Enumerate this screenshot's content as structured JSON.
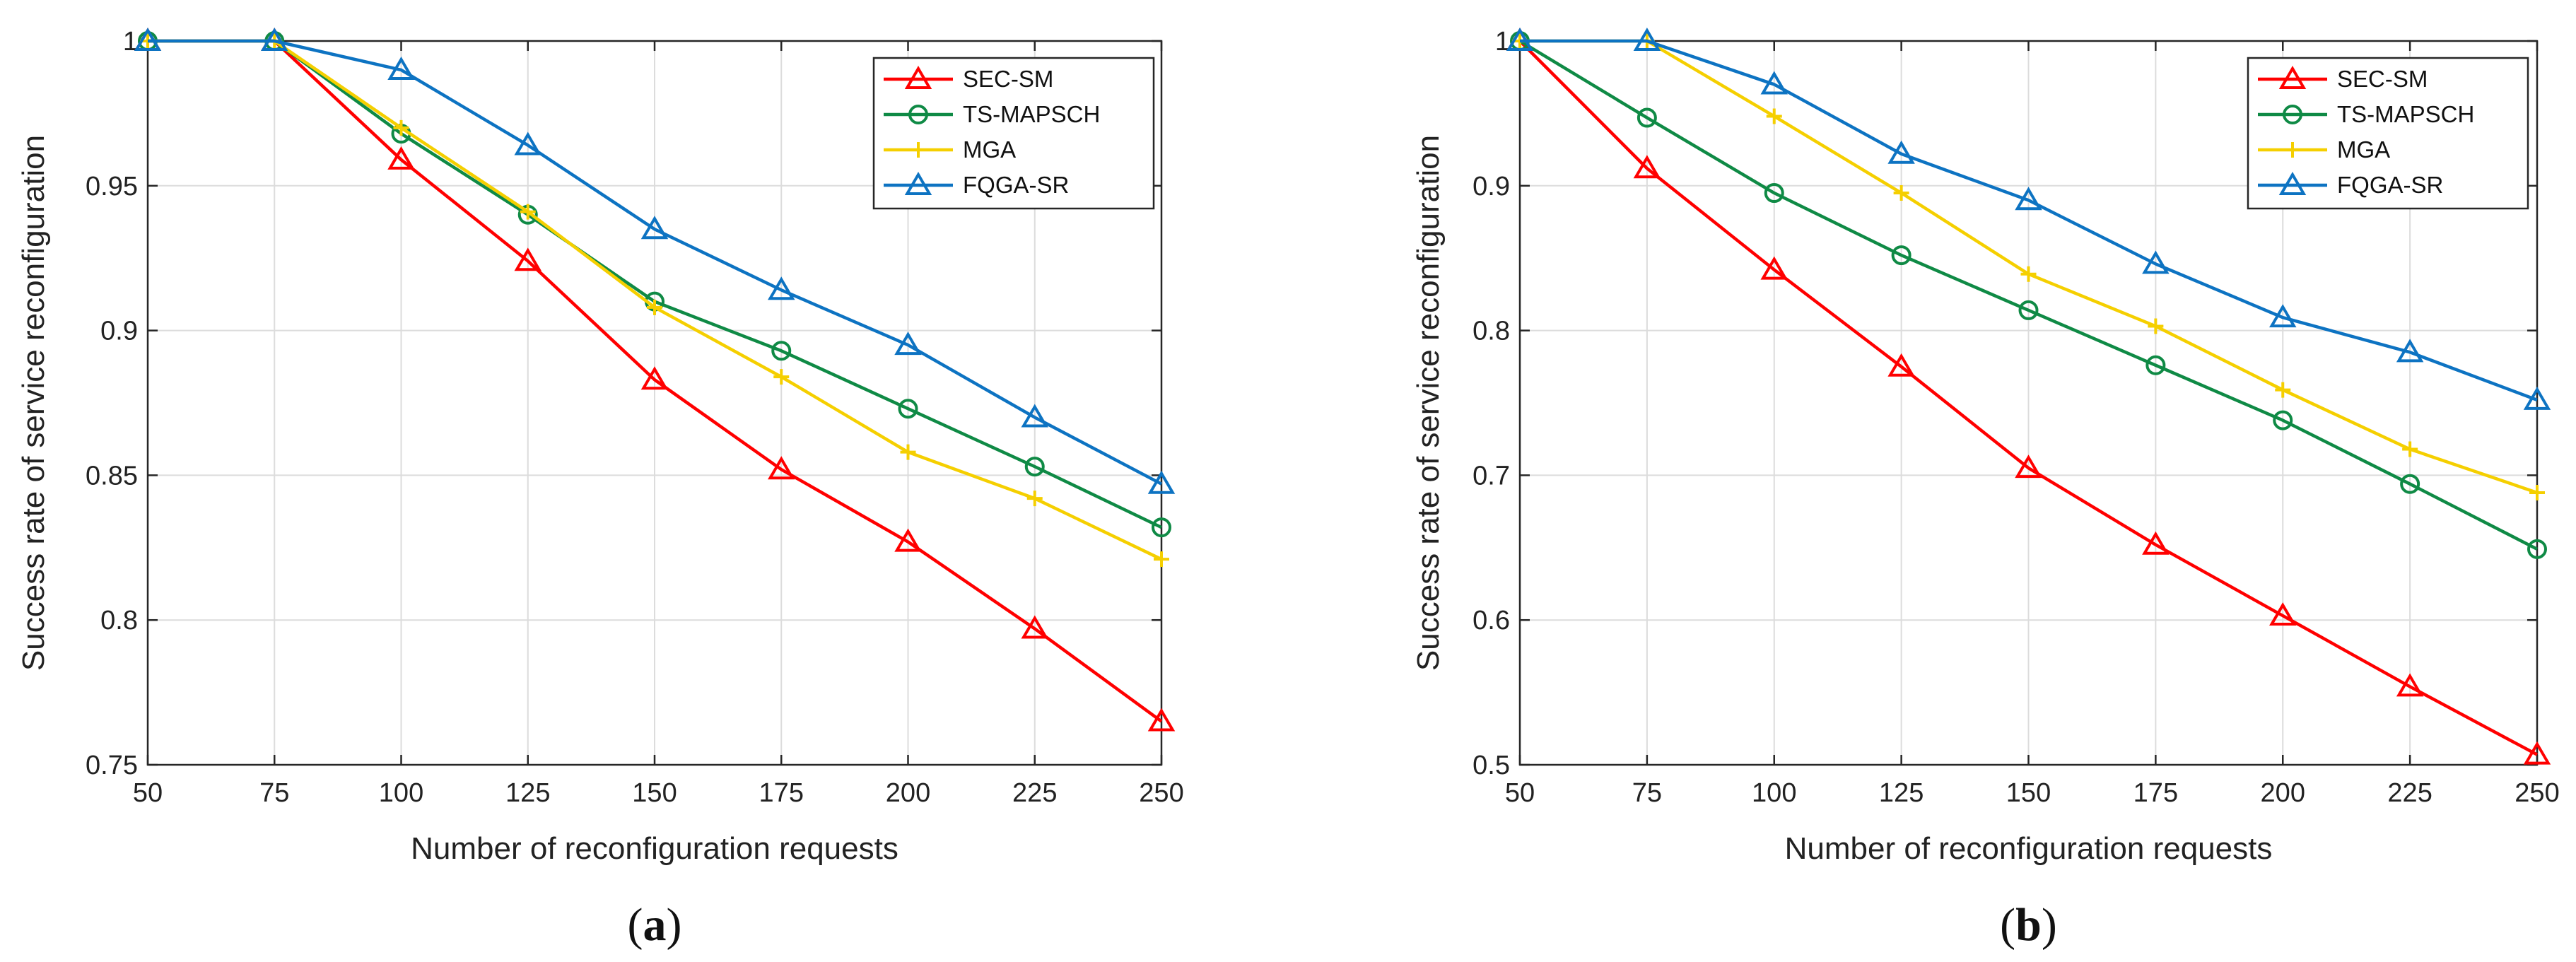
{
  "colors": {
    "SEC-SM": "#ff0000",
    "TS-MAPSCH": "#0f8a45",
    "MGA": "#f5cf00",
    "FQGA-SR": "#0d73c2"
  },
  "markers": {
    "SEC-SM": "triangle",
    "TS-MAPSCH": "circle",
    "MGA": "plus",
    "FQGA-SR": "triangle"
  },
  "chart_data": [
    {
      "type": "line",
      "caption": "(a)",
      "caption_parts": [
        "(",
        "a",
        ")"
      ],
      "xlabel": "Number of reconfiguration requests",
      "ylabel": "Success rate of service reconfiguration",
      "x": [
        50,
        75,
        100,
        125,
        150,
        175,
        200,
        225,
        250
      ],
      "xlim": [
        50,
        250
      ],
      "ylim": [
        0.75,
        1
      ],
      "xticks": [
        "50",
        "75",
        "100",
        "125",
        "150",
        "175",
        "200",
        "225",
        "250"
      ],
      "yticks": [
        "0.75",
        "0.8",
        "0.85",
        "0.9",
        "0.95",
        "1"
      ],
      "ytick_values": [
        0.75,
        0.8,
        0.85,
        0.9,
        0.95,
        1
      ],
      "grid": true,
      "legend_position": "top-right",
      "series": [
        {
          "name": "SEC-SM",
          "values": [
            1,
            1,
            0.959,
            0.924,
            0.883,
            0.852,
            0.827,
            0.797,
            0.765
          ]
        },
        {
          "name": "TS-MAPSCH",
          "values": [
            1,
            1,
            0.968,
            0.94,
            0.91,
            0.893,
            0.873,
            0.853,
            0.832
          ]
        },
        {
          "name": "MGA",
          "values": [
            1,
            1,
            0.97,
            0.941,
            0.908,
            0.884,
            0.858,
            0.842,
            0.821
          ]
        },
        {
          "name": "FQGA-SR",
          "values": [
            1,
            1,
            0.99,
            0.964,
            0.935,
            0.914,
            0.895,
            0.87,
            0.847
          ]
        }
      ]
    },
    {
      "type": "line",
      "caption": "(b)",
      "caption_parts": [
        "(",
        "b",
        ")"
      ],
      "xlabel": "Number of reconfiguration requests",
      "ylabel": "Success rate of service reconfiguration",
      "x": [
        50,
        75,
        100,
        125,
        150,
        175,
        200,
        225,
        250
      ],
      "xlim": [
        50,
        250
      ],
      "ylim": [
        0.5,
        1
      ],
      "xticks": [
        "50",
        "75",
        "100",
        "125",
        "150",
        "175",
        "200",
        "225",
        "250"
      ],
      "yticks": [
        "0.5",
        "0.6",
        "0.7",
        "0.8",
        "0.9",
        "1"
      ],
      "ytick_values": [
        0.5,
        0.6,
        0.7,
        0.8,
        0.9,
        1
      ],
      "grid": true,
      "legend_position": "top-right",
      "series": [
        {
          "name": "SEC-SM",
          "values": [
            1,
            0.912,
            0.842,
            0.775,
            0.705,
            0.652,
            0.603,
            0.554,
            0.507
          ]
        },
        {
          "name": "TS-MAPSCH",
          "values": [
            1,
            0.947,
            0.895,
            0.852,
            0.814,
            0.776,
            0.738,
            0.694,
            0.649
          ]
        },
        {
          "name": "MGA",
          "values": [
            1,
            1,
            0.948,
            0.895,
            0.839,
            0.803,
            0.759,
            0.718,
            0.688
          ]
        },
        {
          "name": "FQGA-SR",
          "values": [
            1,
            1,
            0.97,
            0.922,
            0.89,
            0.846,
            0.809,
            0.785,
            0.752
          ]
        }
      ]
    }
  ]
}
